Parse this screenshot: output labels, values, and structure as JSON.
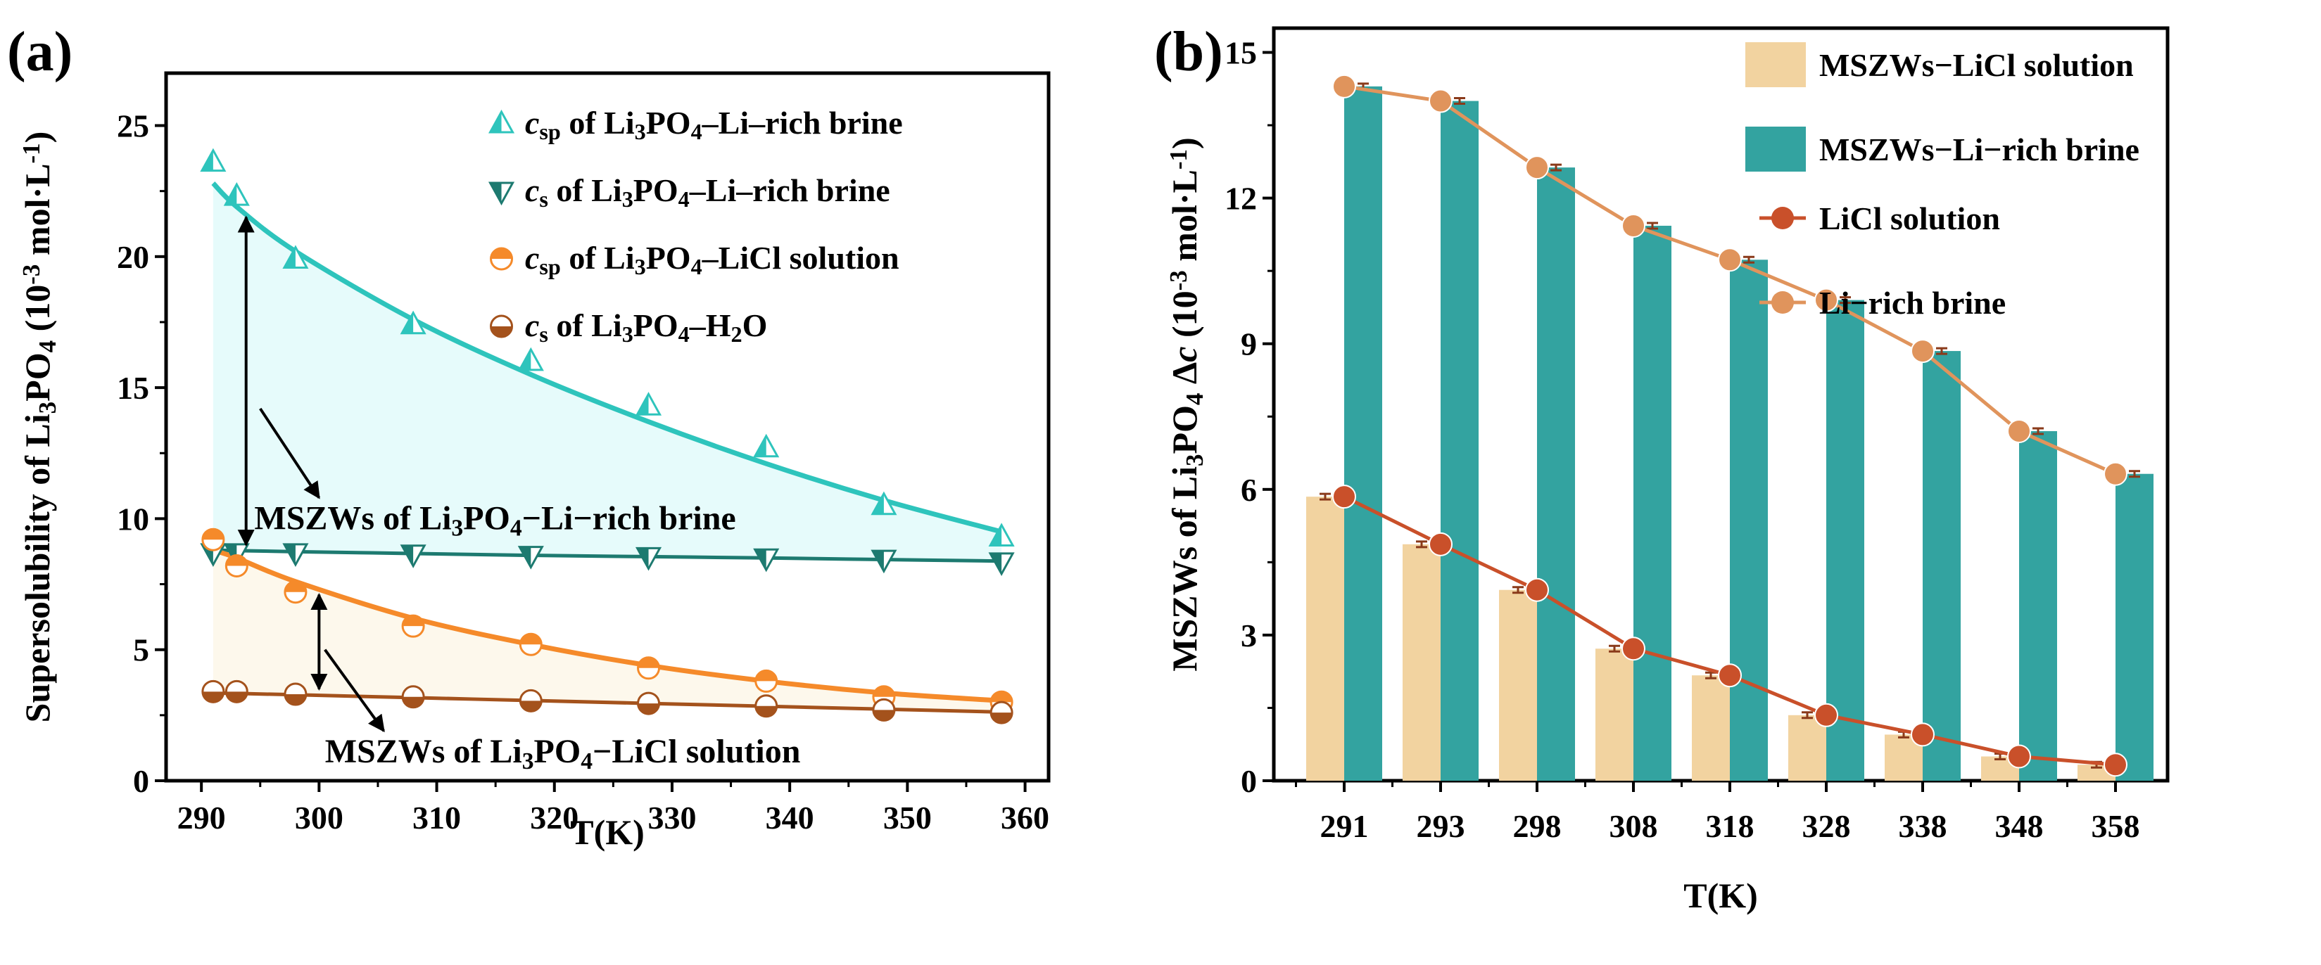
{
  "chart_data": [
    {
      "panel": "(a)",
      "type": "scatter",
      "xlabel": "T(K)",
      "ylabel": [
        {
          "t": "Supersolubility of Li"
        },
        {
          "t": "3",
          "sub": true
        },
        {
          "t": "PO"
        },
        {
          "t": "4",
          "sub": true
        },
        {
          "t": " (10"
        },
        {
          "t": "-3",
          "sup": true
        },
        {
          "t": " mol·L"
        },
        {
          "t": "-1",
          "sup": true
        },
        {
          "t": ")"
        }
      ],
      "xlim": [
        287,
        362
      ],
      "ylim": [
        0,
        27
      ],
      "xticks": [
        290,
        300,
        310,
        320,
        330,
        340,
        350,
        360
      ],
      "yticks": [
        0,
        5,
        10,
        15,
        20,
        25
      ],
      "x": [
        291,
        293,
        298,
        308,
        318,
        328,
        338,
        348,
        358
      ],
      "series": [
        {
          "name": "csp of Li3PO4-Li-rich brine",
          "marker": "triangle-up",
          "color": "#2ec4bc",
          "legend": [
            {
              "t": "c",
              "i": true
            },
            {
              "t": "sp",
              "sub": true
            },
            {
              "t": " of Li"
            },
            {
              "t": "3",
              "sub": true
            },
            {
              "t": "PO"
            },
            {
              "t": "4",
              "sub": true
            },
            {
              "t": "–Li–rich brine"
            }
          ],
          "values": [
            23.6,
            22.3,
            19.9,
            17.4,
            16.0,
            14.3,
            12.7,
            10.5,
            9.3
          ],
          "fit": [
            22.8,
            21.9,
            20.2,
            17.6,
            15.5,
            13.7,
            12.1,
            10.7,
            9.5
          ]
        },
        {
          "name": "cs of Li3PO4-Li-rich brine",
          "marker": "triangle-down",
          "color": "#1d7a70",
          "legend": [
            {
              "t": "c",
              "i": true
            },
            {
              "t": "s",
              "sub": true
            },
            {
              "t": " of Li"
            },
            {
              "t": "3",
              "sub": true
            },
            {
              "t": "PO"
            },
            {
              "t": "4",
              "sub": true
            },
            {
              "t": "–Li–rich brine"
            }
          ],
          "values": [
            8.7,
            8.7,
            8.7,
            8.65,
            8.6,
            8.55,
            8.5,
            8.45,
            8.35
          ],
          "fit": [
            8.8,
            8.78,
            8.74,
            8.67,
            8.6,
            8.55,
            8.5,
            8.44,
            8.38
          ]
        },
        {
          "name": "csp of Li3PO4-LiCl solution",
          "marker": "circle-half",
          "color": "#f58a2a",
          "legend": [
            {
              "t": "c",
              "i": true
            },
            {
              "t": "sp",
              "sub": true
            },
            {
              "t": " of Li"
            },
            {
              "t": "3",
              "sub": true
            },
            {
              "t": "PO"
            },
            {
              "t": "4",
              "sub": true
            },
            {
              "t": "–LiCl solution"
            }
          ],
          "values": [
            9.2,
            8.2,
            7.2,
            5.9,
            5.2,
            4.3,
            3.8,
            3.2,
            3.0
          ],
          "fit": [
            8.8,
            8.5,
            7.6,
            6.2,
            5.2,
            4.4,
            3.8,
            3.35,
            3.05
          ]
        },
        {
          "name": "cs of Li3PO4-H2O",
          "marker": "circle-half",
          "color": "#a4521c",
          "legend": [
            {
              "t": "c",
              "i": true
            },
            {
              "t": "s",
              "sub": true
            },
            {
              "t": " of Li"
            },
            {
              "t": "3",
              "sub": true
            },
            {
              "t": "PO"
            },
            {
              "t": "4",
              "sub": true
            },
            {
              "t": "–H"
            },
            {
              "t": "2",
              "sub": true
            },
            {
              "t": "O"
            }
          ],
          "values": [
            3.4,
            3.4,
            3.3,
            3.2,
            3.05,
            2.95,
            2.85,
            2.7,
            2.6
          ],
          "fit": [
            3.35,
            3.33,
            3.28,
            3.17,
            3.06,
            2.95,
            2.84,
            2.73,
            2.62
          ]
        }
      ],
      "annotations": [
        [
          {
            "t": "MSZWs of Li"
          },
          {
            "t": "3",
            "sub": true
          },
          {
            "t": "PO"
          },
          {
            "t": "4",
            "sub": true
          },
          {
            "t": "−Li−rich brine"
          }
        ],
        [
          {
            "t": "MSZWs of Li"
          },
          {
            "t": "3",
            "sub": true
          },
          {
            "t": "PO"
          },
          {
            "t": "4",
            "sub": true
          },
          {
            "t": "−LiCl solution"
          }
        ]
      ],
      "legend_position": "top-right"
    },
    {
      "panel": "(b)",
      "type": "bar",
      "xlabel": "T(K)",
      "ylabel": [
        {
          "t": "MSZWs of Li"
        },
        {
          "t": "3",
          "sub": true
        },
        {
          "t": "PO"
        },
        {
          "t": "4",
          "sub": true
        },
        {
          "t": " Δ"
        },
        {
          "t": "c",
          "i": true
        },
        {
          "t": " (10"
        },
        {
          "t": "-3",
          "sup": true
        },
        {
          "t": " mol·L"
        },
        {
          "t": "-1",
          "sup": true
        },
        {
          "t": ")"
        }
      ],
      "ylim": [
        0,
        15.5
      ],
      "yticks": [
        0,
        3,
        6,
        9,
        12,
        15
      ],
      "categories": [
        "291",
        "293",
        "298",
        "308",
        "318",
        "328",
        "338",
        "348",
        "358"
      ],
      "series": [
        {
          "name": "MSZWs−LiCl solution",
          "kind": "bar",
          "color": "#f2d3a0",
          "values": [
            5.85,
            4.87,
            3.93,
            2.72,
            2.17,
            1.35,
            0.95,
            0.5,
            0.33
          ]
        },
        {
          "name": "MSZWs−Li−rich brine",
          "kind": "bar",
          "color": "#33a3a0",
          "values": [
            14.3,
            14.0,
            12.63,
            11.43,
            10.73,
            9.9,
            8.85,
            7.2,
            6.32
          ]
        },
        {
          "name": "LiCl solution",
          "kind": "line",
          "color": "#c9502a",
          "values": [
            5.85,
            4.87,
            3.93,
            2.72,
            2.17,
            1.35,
            0.95,
            0.5,
            0.33
          ]
        },
        {
          "name": "Li−rich brine",
          "kind": "line",
          "color": "#e0945c",
          "values": [
            14.3,
            14.0,
            12.63,
            11.43,
            10.73,
            9.9,
            8.85,
            7.2,
            6.32
          ]
        }
      ],
      "legend_position": "top-right"
    }
  ]
}
